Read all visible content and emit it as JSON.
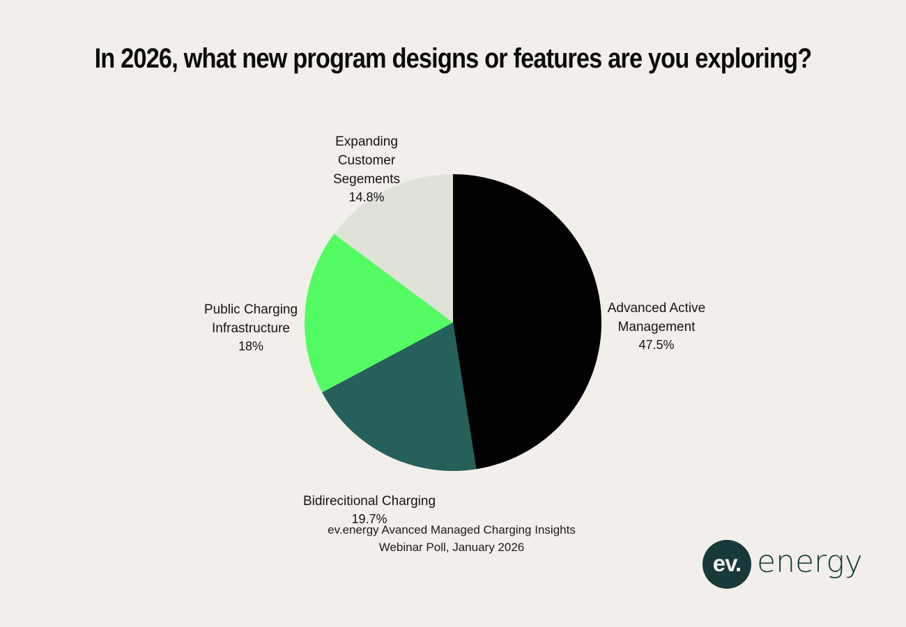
{
  "title": "In 2026, what new program designs or features are you exploring?",
  "chart_data": {
    "type": "pie",
    "title": "In 2026, what new program designs or features are you exploring?",
    "slices": [
      {
        "label": "Advanced Active\nManagement",
        "value": 47.5,
        "value_label": "47.5%",
        "color": "#000000"
      },
      {
        "label": "Bidirecitional Charging",
        "value": 19.7,
        "value_label": "19.7%",
        "color": "#26605a"
      },
      {
        "label": "Public Charging\nInfrastructure",
        "value": 18,
        "value_label": "18%",
        "color": "#52fc62"
      },
      {
        "label": "Expanding\nCustomer\nSegements",
        "value": 14.8,
        "value_label": "14.8%",
        "color": "#dfe2d6"
      }
    ],
    "start": "12 o'clock",
    "direction": "clockwise"
  },
  "source": {
    "line1": "ev.energy Avanced Managed Charging Insights",
    "line2": "Webinar Poll, January 2026"
  },
  "logo": {
    "mark": "ev.",
    "word": "energy",
    "color": "#17393a"
  }
}
